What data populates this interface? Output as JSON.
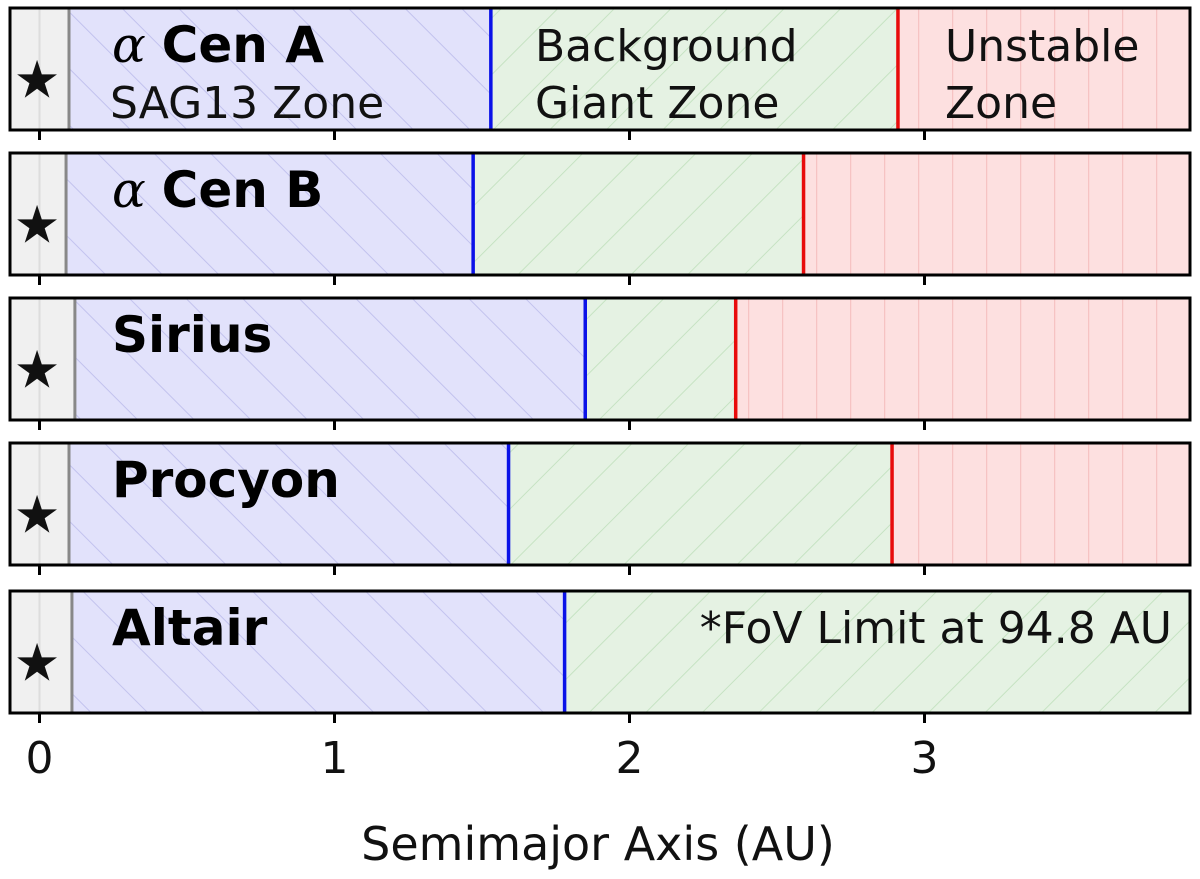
{
  "colors": {
    "star_region": "#f0f0f0",
    "sag13": "#e2e2fb",
    "sag13_hatch": "#c2c2ee",
    "giant": "#e5f2e3",
    "giant_hatch": "#c6e3c3",
    "unstable": "#fde0e0",
    "unstable_hatch": "#f6c3c3",
    "blue_line": "#0b12e8",
    "red_line": "#e80b0b",
    "gray_line": "#888888"
  },
  "star_icon": "black-star-icon",
  "chart_data": {
    "type": "bar",
    "orientation": "horizontal-stacked-zones",
    "xlabel": "Semimajor Axis (AU)",
    "xlim": [
      -0.1,
      3.9
    ],
    "xticks": [
      0,
      1,
      2,
      3
    ],
    "xtick_labels": [
      "0",
      "1",
      "2",
      "3"
    ],
    "zone_labels": {
      "sag13": "SAG13 Zone",
      "giant_line1": "Background",
      "giant_line2": "Giant Zone",
      "unstable_line1": "Unstable",
      "unstable_line2": "Zone"
    },
    "rows": [
      {
        "greek": "α",
        "name": "Cen A",
        "inner": 0.1,
        "sag13_end": 1.53,
        "unstable_start": 2.91,
        "show_zone_labels": true,
        "note": ""
      },
      {
        "greek": "α",
        "name": "Cen B",
        "inner": 0.09,
        "sag13_end": 1.47,
        "unstable_start": 2.59,
        "show_zone_labels": false,
        "note": ""
      },
      {
        "greek": "",
        "name": "Sirius",
        "inner": 0.12,
        "sag13_end": 1.85,
        "unstable_start": 2.36,
        "show_zone_labels": false,
        "note": ""
      },
      {
        "greek": "",
        "name": "Procyon",
        "inner": 0.1,
        "sag13_end": 1.59,
        "unstable_start": 2.89,
        "show_zone_labels": false,
        "note": ""
      },
      {
        "greek": "",
        "name": "Altair",
        "inner": 0.11,
        "sag13_end": 1.78,
        "unstable_start": null,
        "show_zone_labels": false,
        "note": "*FoV Limit at 94.8 AU"
      }
    ]
  }
}
